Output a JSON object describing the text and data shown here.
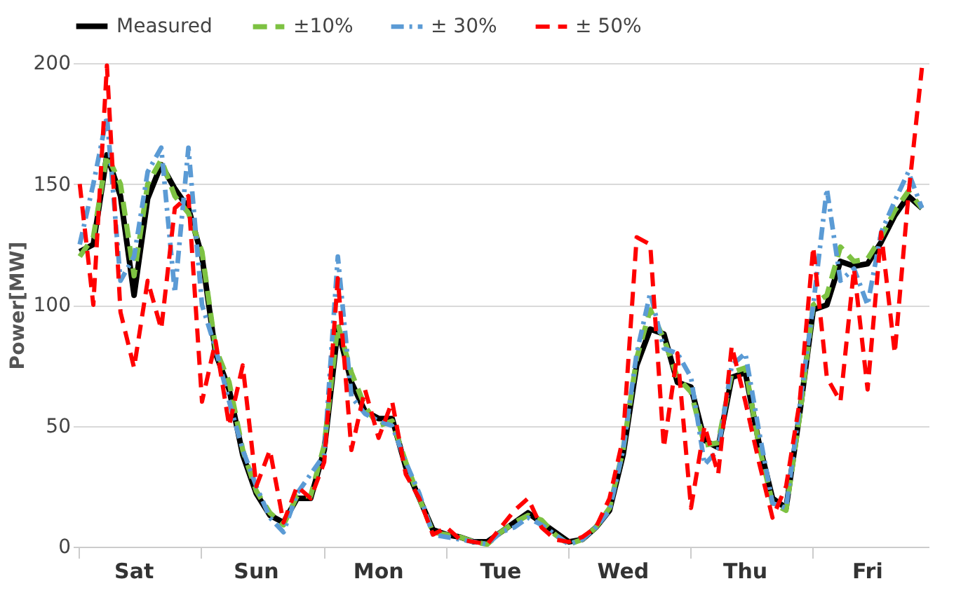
{
  "chart_data": {
    "type": "line",
    "ylabel": "Power[MW]",
    "ylim": [
      0,
      200
    ],
    "yticks": [
      0,
      50,
      100,
      150,
      200
    ],
    "categories": [
      null,
      null,
      null,
      null,
      "Sat",
      null,
      null,
      null,
      null,
      null,
      null,
      null,
      null,
      "Sun",
      null,
      null,
      null,
      null,
      null,
      null,
      null,
      null,
      "Mon",
      null,
      null,
      null,
      null,
      null,
      null,
      null,
      null,
      "Tue",
      null,
      null,
      null,
      null,
      null,
      null,
      null,
      null,
      "Wed",
      null,
      null,
      null,
      null,
      null,
      null,
      null,
      null,
      "Thu",
      null,
      null,
      null,
      null,
      null,
      null,
      null,
      null,
      "Fri",
      null,
      null,
      null,
      null
    ],
    "grid": "y",
    "legend": "top",
    "series": [
      {
        "name": "Measured",
        "color": "#000000",
        "line_style": "solid",
        "values": [
          122,
          125,
          162,
          145,
          104,
          144,
          158,
          148,
          140,
          120,
          80,
          65,
          38,
          22,
          13,
          10,
          20,
          20,
          40,
          90,
          68,
          56,
          53,
          53,
          33,
          20,
          7,
          5,
          4,
          2,
          2,
          6,
          10,
          14,
          10,
          6,
          2,
          3,
          8,
          15,
          38,
          75,
          90,
          88,
          68,
          66,
          44,
          41,
          70,
          72,
          43,
          20,
          16,
          55,
          98,
          100,
          118,
          116,
          117,
          126,
          137,
          145,
          140
        ]
      },
      {
        "name": "±10%",
        "color": "#7dc242",
        "line_style": "dashed",
        "values": [
          120,
          128,
          162,
          150,
          112,
          150,
          160,
          145,
          138,
          122,
          82,
          68,
          40,
          23,
          14,
          9,
          21,
          21,
          42,
          92,
          72,
          58,
          50,
          52,
          35,
          20,
          6,
          5,
          4,
          2,
          1,
          6,
          10,
          13,
          11,
          5,
          1,
          3,
          8,
          16,
          40,
          78,
          98,
          86,
          70,
          64,
          42,
          43,
          72,
          74,
          42,
          18,
          15,
          54,
          100,
          104,
          124,
          118,
          119,
          128,
          139,
          147,
          140
        ]
      },
      {
        "name": "± 30%",
        "color": "#5b9bd5",
        "line_style": "dashdot",
        "values": [
          125,
          150,
          178,
          110,
          120,
          155,
          165,
          105,
          165,
          100,
          82,
          60,
          40,
          25,
          12,
          6,
          22,
          30,
          38,
          120,
          62,
          55,
          52,
          50,
          35,
          22,
          5,
          4,
          3,
          2,
          1,
          6,
          8,
          12,
          9,
          5,
          1,
          3,
          8,
          15,
          40,
          80,
          105,
          82,
          80,
          70,
          34,
          40,
          75,
          80,
          48,
          18,
          16,
          58,
          100,
          148,
          110,
          115,
          100,
          130,
          143,
          155,
          140
        ]
      },
      {
        "name": "± 50%",
        "color": "#ff0000",
        "line_style": "dashed",
        "values": [
          150,
          100,
          199,
          97,
          74,
          110,
          90,
          140,
          145,
          60,
          85,
          50,
          75,
          25,
          40,
          10,
          25,
          20,
          35,
          111,
          40,
          65,
          45,
          60,
          30,
          20,
          5,
          8,
          3,
          2,
          1,
          8,
          15,
          20,
          8,
          3,
          2,
          4,
          8,
          20,
          45,
          128,
          125,
          41,
          80,
          16,
          50,
          30,
          83,
          60,
          35,
          12,
          25,
          60,
          124,
          70,
          60,
          115,
          65,
          130,
          80,
          145,
          198
        ]
      }
    ]
  }
}
